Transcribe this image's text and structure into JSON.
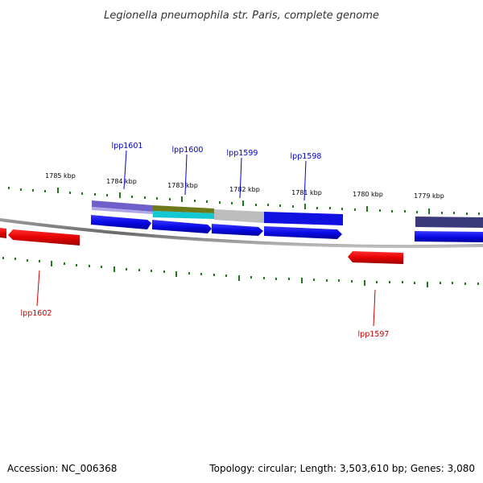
{
  "title": "Legionella pneumophila str. Paris, complete genome",
  "footer": {
    "accession": "Accession: NC_006368",
    "summary": "Topology: circular; Length: 3,503,610 bp; Genes: 3,080"
  },
  "scale_labels": [
    "1785 kbp",
    "1784 kbp",
    "1783 kbp",
    "1782 kbp",
    "1781 kbp",
    "1780 kbp",
    "1779 kbp"
  ],
  "gene_labels": {
    "top": [
      "lpp1601",
      "lpp1600",
      "lpp1599",
      "lpp1598"
    ],
    "bottom": [
      "lpp1602",
      "lpp1597"
    ]
  },
  "colors": {
    "backbone": "#7a7a7a",
    "tick": "#1f7a1f",
    "forward_gene": "#1010e0",
    "reverse_gene": "#e00000",
    "label_top": "#0000cc",
    "label_bottom": "#cc0000",
    "cog_purple": "#6f5fc8",
    "cog_olive": "#6e7a1a",
    "cog_cyan": "#12c8d2",
    "cog_grey": "#bdbdbd",
    "cog_navy": "#3a3a7a"
  }
}
